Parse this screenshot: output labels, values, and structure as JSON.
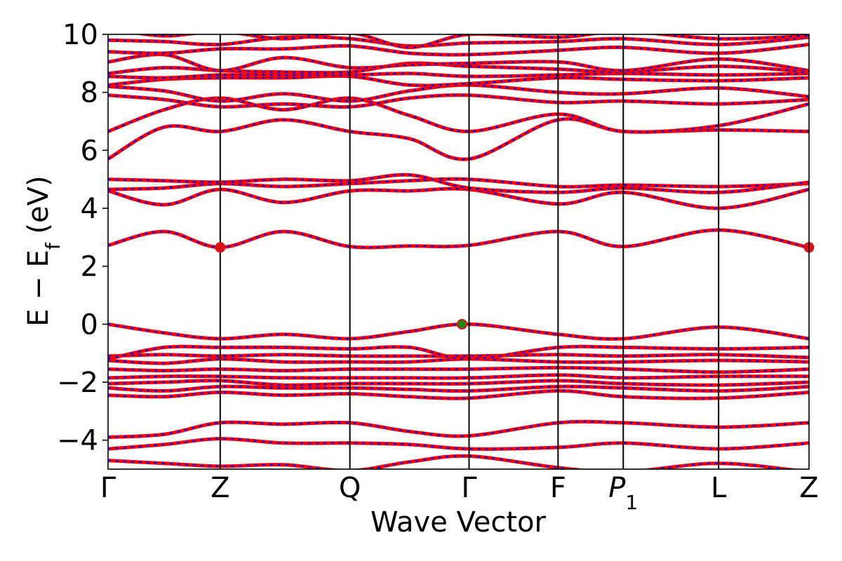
{
  "chart_data": {
    "type": "line",
    "xlabel": "Wave Vector",
    "ylabel": "E − E_f (eV)",
    "ylabel_main": "E − E",
    "ylabel_sub": "f",
    "ylabel_unit": "(eV)",
    "ylim": [
      -5,
      10
    ],
    "yticks": [
      -4,
      -2,
      0,
      2,
      4,
      6,
      8,
      10
    ],
    "ytick_labels": [
      "−4",
      "−2",
      "0",
      "2",
      "4",
      "6",
      "8",
      "10"
    ],
    "kpath": [
      {
        "label": "Γ",
        "x": 0.0
      },
      {
        "label": "Z",
        "x": 0.16
      },
      {
        "label": "Q",
        "x": 0.345
      },
      {
        "label": "Γ",
        "x": 0.515
      },
      {
        "label": "F",
        "x": 0.642
      },
      {
        "label": "P",
        "sub": "1",
        "x": 0.735
      },
      {
        "label": "L",
        "x": 0.871
      },
      {
        "label": "Z",
        "x": 1.0
      }
    ],
    "xlim": [
      0,
      1
    ],
    "grid": false,
    "colors": {
      "line_solid": "#ff0000",
      "line_dashed": "#0000ff",
      "vline": "#000000",
      "cbm_marker": "#dd1111",
      "vbm_marker": "#1a8a1a",
      "vbm_edge": "#dd1111"
    },
    "sample_x": [
      0.0,
      0.08,
      0.16,
      0.25,
      0.345,
      0.43,
      0.515,
      0.642,
      0.735,
      0.871,
      1.0
    ],
    "series": [
      {
        "values": [
          -4.7,
          -4.8,
          -4.9,
          -4.85,
          -5.05,
          -4.75,
          -4.55,
          -4.95,
          -5.1,
          -4.8,
          -5.1
        ]
      },
      {
        "values": [
          -4.3,
          -4.15,
          -3.95,
          -4.1,
          -4.1,
          -4.15,
          -4.3,
          -4.25,
          -4.1,
          -4.3,
          -4.1
        ]
      },
      {
        "values": [
          -3.9,
          -3.8,
          -3.4,
          -3.45,
          -3.4,
          -3.7,
          -3.85,
          -3.4,
          -3.4,
          -3.55,
          -3.4
        ]
      },
      {
        "values": [
          -2.45,
          -2.5,
          -2.35,
          -2.45,
          -2.4,
          -2.5,
          -2.55,
          -2.3,
          -2.5,
          -2.55,
          -2.35
        ]
      },
      {
        "values": [
          -2.2,
          -2.3,
          -2.15,
          -2.2,
          -2.2,
          -2.25,
          -2.3,
          -2.15,
          -2.2,
          -2.3,
          -2.15
        ]
      },
      {
        "values": [
          -2.05,
          -2.0,
          -1.95,
          -2.1,
          -2.05,
          -2.05,
          -2.05,
          -1.95,
          -2.05,
          -2.1,
          -2.0
        ]
      },
      {
        "values": [
          -1.85,
          -1.8,
          -1.8,
          -1.85,
          -1.85,
          -1.85,
          -1.85,
          -1.75,
          -1.85,
          -1.8,
          -1.8
        ]
      },
      {
        "values": [
          -1.55,
          -1.6,
          -1.55,
          -1.6,
          -1.55,
          -1.55,
          -1.55,
          -1.5,
          -1.55,
          -1.65,
          -1.55
        ]
      },
      {
        "values": [
          -1.25,
          -1.35,
          -1.2,
          -1.3,
          -1.3,
          -1.3,
          -1.2,
          -1.3,
          -1.3,
          -1.25,
          -1.3
        ]
      },
      {
        "values": [
          -1.1,
          -1.05,
          -1.1,
          -1.05,
          -1.1,
          -1.1,
          -1.1,
          -1.05,
          -1.1,
          -1.05,
          -1.15
        ]
      },
      {
        "values": [
          -1.2,
          -0.8,
          -0.8,
          -0.8,
          -0.85,
          -0.8,
          -1.2,
          -0.8,
          -0.8,
          -0.85,
          -0.8
        ]
      },
      {
        "values": [
          0.0,
          -0.3,
          -0.5,
          -0.35,
          -0.5,
          -0.25,
          0.0,
          -0.35,
          -0.5,
          -0.1,
          -0.5
        ]
      },
      {
        "values": [
          2.72,
          3.2,
          2.65,
          3.2,
          2.68,
          2.7,
          2.72,
          3.2,
          2.68,
          3.25,
          2.65
        ]
      },
      {
        "values": [
          4.6,
          4.12,
          4.65,
          4.2,
          4.6,
          4.6,
          4.65,
          4.15,
          4.55,
          4.0,
          4.65
        ]
      },
      {
        "values": [
          4.65,
          4.7,
          4.85,
          4.75,
          4.85,
          4.95,
          5.0,
          4.75,
          4.8,
          4.75,
          4.85
        ]
      },
      {
        "values": [
          5.0,
          4.95,
          4.9,
          5.0,
          4.95,
          5.15,
          4.7,
          4.55,
          4.7,
          4.55,
          4.9
        ]
      },
      {
        "values": [
          5.7,
          6.8,
          6.65,
          7.05,
          6.65,
          6.4,
          5.7,
          7.05,
          6.65,
          6.7,
          6.65
        ]
      },
      {
        "values": [
          6.65,
          7.4,
          7.8,
          7.4,
          7.8,
          7.2,
          6.65,
          7.25,
          6.65,
          6.85,
          7.6
        ]
      },
      {
        "values": [
          7.9,
          7.75,
          7.5,
          7.6,
          7.5,
          7.8,
          7.9,
          7.65,
          7.7,
          7.6,
          7.75
        ]
      },
      {
        "values": [
          8.2,
          8.05,
          7.7,
          7.95,
          7.7,
          8.05,
          8.25,
          8.0,
          7.95,
          8.15,
          7.85
        ]
      },
      {
        "values": [
          8.25,
          8.45,
          8.5,
          8.5,
          8.55,
          8.25,
          8.3,
          8.5,
          8.45,
          8.4,
          8.5
        ]
      },
      {
        "values": [
          8.55,
          8.5,
          8.6,
          8.6,
          8.6,
          8.65,
          8.55,
          8.6,
          8.65,
          8.6,
          8.65
        ]
      },
      {
        "values": [
          8.65,
          8.85,
          8.75,
          8.7,
          8.7,
          9.0,
          8.9,
          8.8,
          8.7,
          8.9,
          8.7
        ]
      },
      {
        "values": [
          9.05,
          9.3,
          8.75,
          9.2,
          8.85,
          8.95,
          9.0,
          9.05,
          8.75,
          9.15,
          8.75
        ]
      },
      {
        "values": [
          9.4,
          9.35,
          9.5,
          9.5,
          9.6,
          9.35,
          9.3,
          9.45,
          9.55,
          9.35,
          9.65
        ]
      },
      {
        "values": [
          9.8,
          9.75,
          9.65,
          9.9,
          9.85,
          9.6,
          9.7,
          9.75,
          9.85,
          9.65,
          9.9
        ]
      },
      {
        "values": [
          10.2,
          9.95,
          10.1,
          9.85,
          10.05,
          9.55,
          10.0,
          9.9,
          10.1,
          9.85,
          9.95
        ]
      }
    ],
    "markers": [
      {
        "name": "cbm",
        "x": 0.16,
        "y": 2.65
      },
      {
        "name": "cbm",
        "x": 1.0,
        "y": 2.65
      },
      {
        "name": "vbm",
        "x": 0.505,
        "y": 0.0
      }
    ]
  }
}
